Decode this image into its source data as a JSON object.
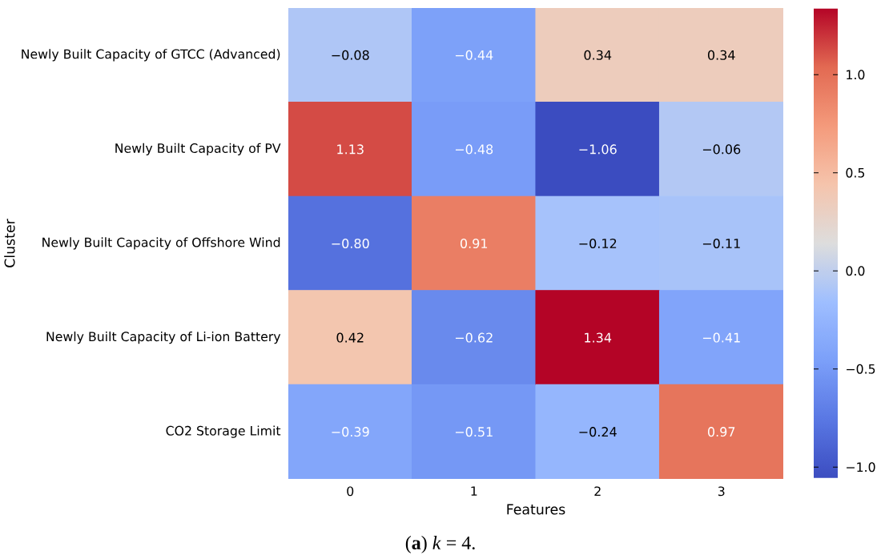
{
  "chart_data": {
    "type": "heatmap",
    "xlabel": "Features",
    "ylabel": "Cluster",
    "categories": [
      "0",
      "1",
      "2",
      "3"
    ],
    "y_categories": [
      "Newly Built Capacity of GTCC (Advanced)",
      "Newly Built Capacity of PV",
      "Newly Built Capacity of Offshore Wind",
      "Newly Built Capacity of Li-ion Battery",
      "CO2 Storage Limit"
    ],
    "cells": [
      [
        -0.08,
        -0.44,
        0.34,
        0.34
      ],
      [
        1.13,
        -0.48,
        -1.06,
        -0.06
      ],
      [
        -0.8,
        0.91,
        -0.12,
        -0.11
      ],
      [
        0.42,
        -0.62,
        1.34,
        -0.41
      ],
      [
        -0.39,
        -0.51,
        -0.24,
        0.97
      ]
    ],
    "cell_labels": [
      [
        "−0.08",
        "−0.44",
        "0.34",
        "0.34"
      ],
      [
        "1.13",
        "−0.48",
        "−1.06",
        "−0.06"
      ],
      [
        "−0.80",
        "0.91",
        "−0.12",
        "−0.11"
      ],
      [
        "0.42",
        "−0.62",
        "1.34",
        "−0.41"
      ],
      [
        "−0.39",
        "−0.51",
        "−0.24",
        "0.97"
      ]
    ],
    "clim": [
      -1.06,
      1.34
    ],
    "cticks": [
      {
        "value": -1.0,
        "label": "−1.0"
      },
      {
        "value": -0.5,
        "label": "−0.5"
      },
      {
        "value": 0.0,
        "label": "0.0"
      },
      {
        "value": 0.5,
        "label": "0.5"
      },
      {
        "value": 1.0,
        "label": "1.0"
      }
    ],
    "annotations": [
      "(**a**) *k* = 4."
    ]
  }
}
